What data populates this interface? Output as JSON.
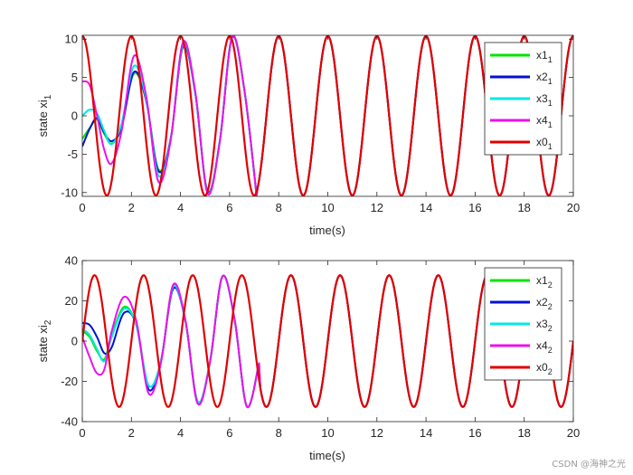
{
  "chart_data": [
    {
      "type": "line",
      "ylabel": "state xi",
      "ylabel_sub": "1",
      "xlabel": "time(s)",
      "xlim": [
        0,
        20
      ],
      "ylim": [
        -10.5,
        10.5
      ],
      "xticks": [
        "0",
        "2",
        "4",
        "6",
        "8",
        "10",
        "12",
        "14",
        "16",
        "18",
        "20"
      ],
      "yticks": [
        "10",
        "5",
        "0",
        "-5",
        "-10"
      ],
      "grid": false,
      "legend": "top-right",
      "series": [
        {
          "name": "x1",
          "sub": "1",
          "color": "#00e600",
          "x": [
            0,
            0.3,
            0.6,
            0.9,
            1.2,
            1.6,
            2.1,
            2.6,
            3.1,
            3.6,
            4.1,
            4.6,
            5.1,
            5.6,
            6.1,
            6.6,
            7.1
          ],
          "y": [
            -3.0,
            -1.6,
            -0.5,
            -2.4,
            -3.6,
            -1.5,
            5.5,
            2.0,
            -7.0,
            -3.0,
            9.0,
            3.0,
            -9.8,
            -3.3,
            10.2,
            3.4,
            -10.4
          ]
        },
        {
          "name": "x2",
          "sub": "1",
          "color": "#0010d0",
          "x": [
            0,
            0.3,
            0.6,
            0.9,
            1.2,
            1.6,
            2.1,
            2.6,
            3.1,
            3.6,
            4.1,
            4.6,
            5.1,
            5.6,
            6.1,
            6.6,
            7.1
          ],
          "y": [
            -4.0,
            -1.7,
            -0.3,
            -2.2,
            -3.3,
            -1.5,
            5.7,
            2.0,
            -7.2,
            -3.0,
            9.1,
            3.0,
            -9.9,
            -3.3,
            10.2,
            3.4,
            -10.4
          ]
        },
        {
          "name": "x3",
          "sub": "1",
          "color": "#00e8e8",
          "x": [
            0,
            0.3,
            0.6,
            0.9,
            1.2,
            1.6,
            2.1,
            2.6,
            3.1,
            3.6,
            4.1,
            4.6,
            5.1,
            5.6,
            6.1,
            6.6,
            7.1
          ],
          "y": [
            0.0,
            0.8,
            0.3,
            -2.0,
            -3.7,
            -1.0,
            6.5,
            2.2,
            -7.8,
            -3.1,
            9.3,
            3.1,
            -10.0,
            -3.3,
            10.3,
            3.4,
            -10.4
          ]
        },
        {
          "name": "x4",
          "sub": "1",
          "color": "#ee10ee",
          "x": [
            0,
            0.3,
            0.6,
            0.9,
            1.2,
            1.6,
            2.1,
            2.6,
            3.1,
            3.6,
            4.1,
            4.6,
            5.1,
            5.6,
            6.1,
            6.6,
            7.1
          ],
          "y": [
            4.5,
            4.0,
            0.0,
            -4.5,
            -6.2,
            -2.0,
            7.8,
            2.6,
            -8.6,
            -3.2,
            9.6,
            3.2,
            -10.1,
            -3.4,
            10.3,
            3.4,
            -10.4
          ]
        },
        {
          "name": "x0",
          "sub": "1",
          "color": "#e00000",
          "amplitude": 10.4,
          "period": 2.0,
          "phase_shift": 0.0
        }
      ]
    },
    {
      "type": "line",
      "ylabel": "state xi",
      "ylabel_sub": "2",
      "xlabel": "time(s)",
      "xlim": [
        0,
        20
      ],
      "ylim": [
        -40,
        40
      ],
      "xticks": [
        "0",
        "2",
        "4",
        "6",
        "8",
        "10",
        "12",
        "14",
        "16",
        "18",
        "20"
      ],
      "yticks": [
        "40",
        "20",
        "0",
        "-20",
        "-40"
      ],
      "grid": false,
      "legend": "top-right",
      "series": [
        {
          "name": "x1",
          "sub": "2",
          "color": "#00e600",
          "x": [
            0,
            0.3,
            0.6,
            0.9,
            1.2,
            1.7,
            2.2,
            2.7,
            3.2,
            3.7,
            4.2,
            4.7,
            5.2,
            5.7,
            6.2,
            6.7,
            7.2
          ],
          "y": [
            5.0,
            2.0,
            -5.0,
            -9.0,
            3.0,
            17.0,
            8.0,
            -22.0,
            -10.0,
            27.0,
            10.0,
            -30.0,
            -10.5,
            32.0,
            11.0,
            -32.5,
            -11.0
          ]
        },
        {
          "name": "x2",
          "sub": "2",
          "color": "#0010d0",
          "x": [
            0,
            0.3,
            0.6,
            0.9,
            1.2,
            1.7,
            2.2,
            2.7,
            3.2,
            3.7,
            4.2,
            4.7,
            5.2,
            5.7,
            6.2,
            6.7,
            7.2
          ],
          "y": [
            9.0,
            8.0,
            2.0,
            -6.0,
            -3.0,
            14.0,
            8.0,
            -24.0,
            -10.0,
            26.0,
            10.0,
            -31.0,
            -10.5,
            32.0,
            11.0,
            -32.5,
            -11.0
          ]
        },
        {
          "name": "x3",
          "sub": "2",
          "color": "#00e8e8",
          "x": [
            0,
            0.3,
            0.6,
            0.9,
            1.2,
            1.7,
            2.2,
            2.7,
            3.2,
            3.7,
            4.2,
            4.7,
            5.2,
            5.7,
            6.2,
            6.7,
            7.2
          ],
          "y": [
            6.0,
            3.0,
            -4.0,
            -10.0,
            2.0,
            16.0,
            8.0,
            -22.0,
            -10.0,
            27.0,
            10.0,
            -30.0,
            -10.5,
            32.0,
            11.0,
            -32.5,
            -11.0
          ]
        },
        {
          "name": "x4",
          "sub": "2",
          "color": "#ee10ee",
          "x": [
            0,
            0.3,
            0.6,
            0.9,
            1.2,
            1.7,
            2.2,
            2.7,
            3.2,
            3.7,
            4.2,
            4.7,
            5.2,
            5.7,
            6.2,
            6.7,
            7.2
          ],
          "y": [
            2.0,
            -8.0,
            -16.0,
            -14.0,
            5.0,
            22.0,
            10.0,
            -26.0,
            -11.0,
            28.0,
            10.5,
            -31.0,
            -10.5,
            32.0,
            11.0,
            -32.5,
            -11.0
          ]
        },
        {
          "name": "x0",
          "sub": "2",
          "color": "#e00000",
          "amplitude": 32.7,
          "period": 2.0,
          "phase_shift": 0.5
        }
      ]
    }
  ],
  "watermark": "CSDN @海神之光"
}
